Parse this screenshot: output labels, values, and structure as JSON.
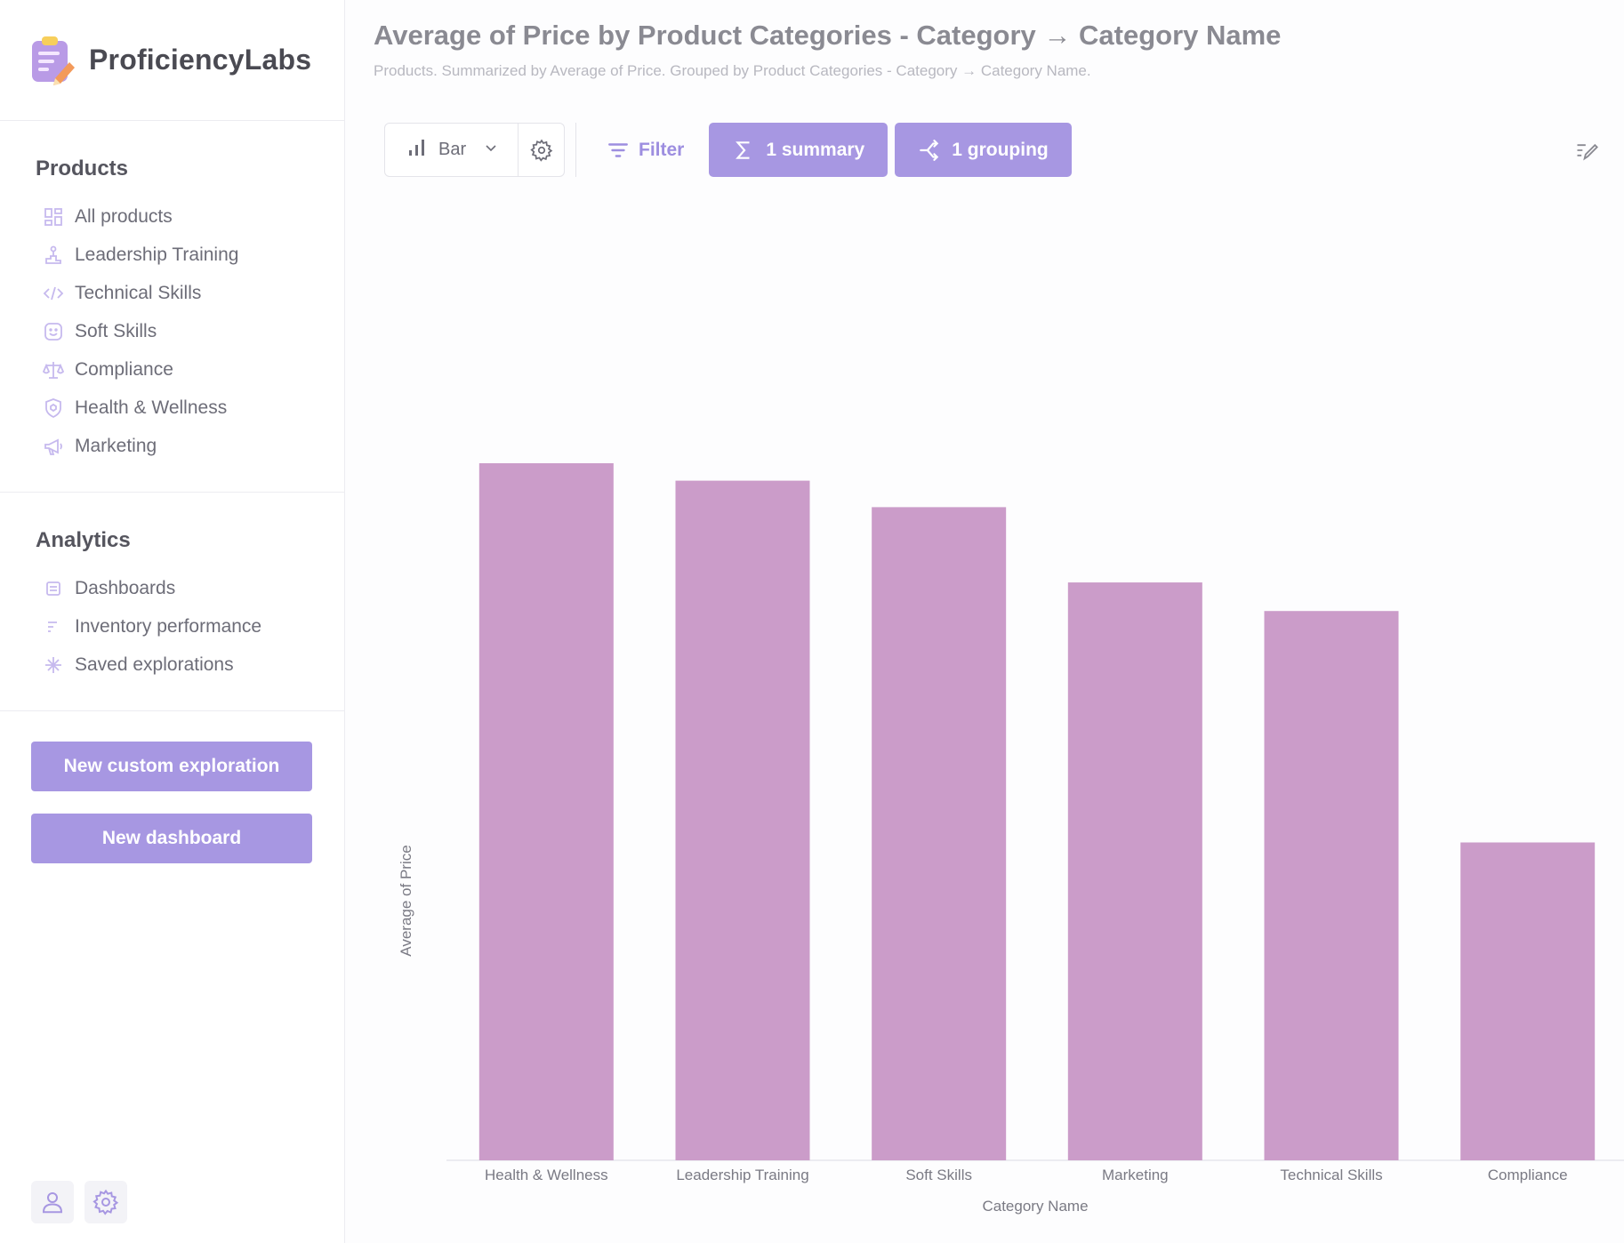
{
  "app": {
    "name": "ProficiencyLabs"
  },
  "sidebar": {
    "products": {
      "title": "Products",
      "items": [
        {
          "label": "All products",
          "icon": "grid-icon"
        },
        {
          "label": "Leadership Training",
          "icon": "podium-icon"
        },
        {
          "label": "Technical Skills",
          "icon": "code-icon"
        },
        {
          "label": "Soft Skills",
          "icon": "smile-icon"
        },
        {
          "label": "Compliance",
          "icon": "scale-icon"
        },
        {
          "label": "Health & Wellness",
          "icon": "shield-icon"
        },
        {
          "label": "Marketing",
          "icon": "megaphone-icon"
        }
      ]
    },
    "analytics": {
      "title": "Analytics",
      "items": [
        {
          "label": "Dashboards",
          "icon": "dashboard-icon"
        },
        {
          "label": "Inventory performance",
          "icon": "lines-icon"
        },
        {
          "label": "Saved explorations",
          "icon": "sparkle-icon"
        }
      ]
    },
    "buttons": {
      "new_exploration": "New custom exploration",
      "new_dashboard": "New dashboard"
    }
  },
  "main": {
    "title": "Average of Price by Product Categories - Category → Category Name",
    "subtitle": "Products. Summarized by Average of Price. Grouped by Product Categories - Category → Category Name.",
    "toolbar": {
      "chart_type": "Bar",
      "filter": "Filter",
      "summary": "1 summary",
      "grouping": "1 grouping"
    }
  },
  "colors": {
    "accent": "#a797e2",
    "bar": "#cb9cc9"
  },
  "chart_data": {
    "type": "bar",
    "categories": [
      "Health & Wellness",
      "Leadership Training",
      "Soft Skills",
      "Marketing",
      "Technical Skills",
      "Compliance"
    ],
    "values": [
      100,
      97.5,
      93.7,
      82.9,
      78.8,
      45.6
    ],
    "xlabel": "Category Name",
    "ylabel": "Average of Price",
    "ylim": [
      0,
      100
    ],
    "grid": false
  }
}
